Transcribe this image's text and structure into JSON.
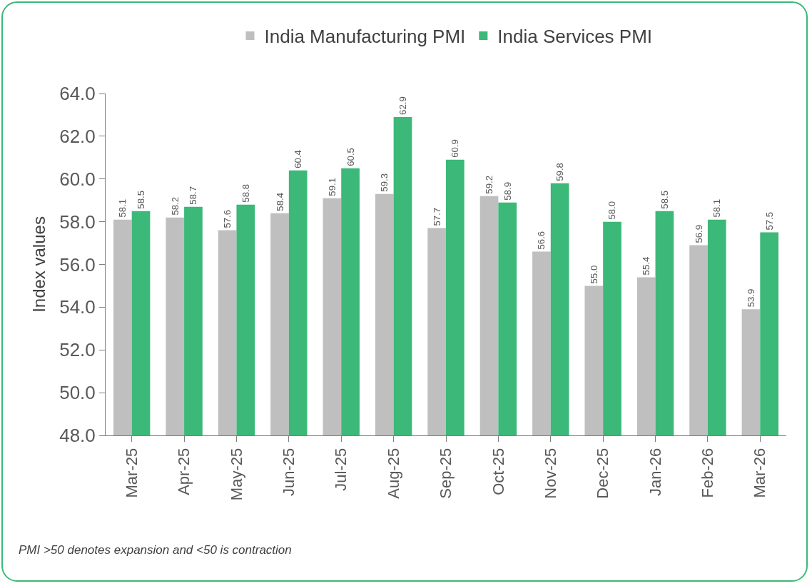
{
  "chart_data": {
    "type": "bar",
    "ylabel": "Index values",
    "categories": [
      "Mar-25",
      "Apr-25",
      "May-25",
      "Jun-25",
      "Jul-25",
      "Aug-25",
      "Sep-25",
      "Oct-25",
      "Nov-25",
      "Dec-25",
      "Jan-26",
      "Feb-26",
      "Mar-26"
    ],
    "series": [
      {
        "name": "India Manufacturing PMI",
        "color": "#bfbfbf",
        "values": [
          58.1,
          58.2,
          57.6,
          58.4,
          59.1,
          59.3,
          57.7,
          59.2,
          56.6,
          55.0,
          55.4,
          56.9,
          53.9
        ],
        "value_labels": [
          "58.1",
          "58.2",
          "57.6",
          "58.4",
          "59.1",
          "59.3",
          "57.7",
          "59.2",
          "56.6",
          "55.0",
          "55.4",
          "56.9",
          "53.9"
        ]
      },
      {
        "name": "India Services PMI",
        "color": "#3cb878",
        "values": [
          58.5,
          58.7,
          58.8,
          60.4,
          60.5,
          62.9,
          60.9,
          58.9,
          59.8,
          58.0,
          58.5,
          58.1,
          57.5
        ],
        "value_labels": [
          "58.5",
          "58.7",
          "58.8",
          "60.4",
          "60.5",
          "62.9",
          "60.9",
          "58.9",
          "59.8",
          "58.0",
          "58.5",
          "58.1",
          "57.5"
        ]
      }
    ],
    "ylim": [
      48,
      64
    ],
    "yticks": [
      {
        "value": 48,
        "label": "48.0"
      },
      {
        "value": 50,
        "label": "50.0"
      },
      {
        "value": 52,
        "label": "52.0"
      },
      {
        "value": 54,
        "label": "54.0"
      },
      {
        "value": 56,
        "label": "56.0"
      },
      {
        "value": 58,
        "label": "58.0"
      },
      {
        "value": 60,
        "label": "60.0"
      },
      {
        "value": 62,
        "label": "62.0"
      },
      {
        "value": 64,
        "label": "64.0"
      }
    ],
    "grid": false,
    "legend": "top",
    "annotations": [
      "PMI >50 denotes expansion and <50 is contraction"
    ]
  }
}
